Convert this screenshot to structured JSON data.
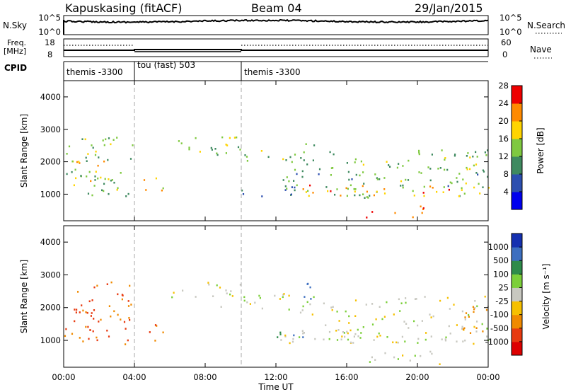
{
  "header": {
    "station": "Kapuskasing (fitACF)",
    "beam": "Beam 04",
    "date": "29/Jan/2015"
  },
  "noise_panel": {
    "left_label": "N.Sky",
    "right_label": "N.Search",
    "y_ticks": [
      "10^5",
      "10^0"
    ]
  },
  "freq_panel": {
    "left_label_1": "Freq.",
    "left_label_2": "[MHz]",
    "left_ticks": [
      "18",
      "8"
    ],
    "right_label": "Nave",
    "right_ticks": [
      "60",
      "0"
    ]
  },
  "cpid_panel": {
    "label": "CPID",
    "segments": [
      {
        "name": "themis -3300",
        "start_hour": 0,
        "end_hour": 4
      },
      {
        "name": "tou (fast) 503",
        "start_hour": 4,
        "end_hour": 10
      },
      {
        "name": "themis -3300",
        "start_hour": 10,
        "end_hour": 24
      }
    ]
  },
  "power_panel": {
    "ylabel": "Slant Range [km]",
    "y_ticks": [
      "1000",
      "2000",
      "3000",
      "4000"
    ],
    "colorbar_label": "Power [dB]",
    "colorbar_ticks": [
      "4",
      "8",
      "12",
      "16",
      "20",
      "24",
      "28"
    ],
    "colors": [
      "#0000ee",
      "#2d4fb0",
      "#3f8a60",
      "#7fc940",
      "#ffd400",
      "#ff8a00",
      "#ee0000"
    ]
  },
  "velocity_panel": {
    "ylabel": "Slant Range [km]",
    "y_ticks": [
      "1000",
      "2000",
      "3000",
      "4000"
    ],
    "colorbar_label": "Velocity [m s⁻¹]",
    "colorbar_ticks": [
      "1000",
      "500",
      "100",
      "25",
      "-25",
      "-100",
      "-500",
      "-1000"
    ],
    "colors": [
      "#1530b0",
      "#3d6fc0",
      "#2e8b4a",
      "#7ccf3a",
      "#c8c8c0",
      "#f6c000",
      "#f08a00",
      "#e83a10",
      "#dd0000"
    ]
  },
  "x_axis": {
    "label": "Time UT",
    "ticks": [
      "00:00",
      "04:00",
      "08:00",
      "12:00",
      "16:00",
      "20:00",
      "00:00"
    ]
  },
  "chart_data": {
    "type": "heatmap",
    "x_range_hours": [
      0,
      24
    ],
    "y_range_km": [
      180,
      4500
    ],
    "vertical_markers_hours": [
      4,
      10
    ],
    "power_scale_db": [
      0,
      30
    ],
    "velocity_scale": [
      -1000,
      1000
    ],
    "echo_regions": [
      {
        "t": [
          0.0,
          3.9
        ],
        "r": [
          900,
          2800
        ],
        "power": 14,
        "vel": -300
      },
      {
        "t": [
          0.0,
          2.8
        ],
        "r": [
          1300,
          2100
        ],
        "power": 19,
        "vel": -500
      },
      {
        "t": [
          4.5,
          5.6
        ],
        "r": [
          1000,
          1600
        ],
        "power": 21,
        "vel": -300
      },
      {
        "t": [
          6.0,
          10.0
        ],
        "r": [
          2300,
          2800
        ],
        "power": 15,
        "vel": 0
      },
      {
        "t": [
          8.0,
          12.5
        ],
        "r": [
          2000,
          2500
        ],
        "power": 15,
        "vel": 0
      },
      {
        "t": [
          10.0,
          13.5
        ],
        "r": [
          950,
          1200
        ],
        "power": 9,
        "vel": 0
      },
      {
        "t": [
          12.5,
          24.0
        ],
        "r": [
          900,
          2400
        ],
        "power": 13,
        "vel": 0
      },
      {
        "t": [
          13.2,
          24.0
        ],
        "r": [
          950,
          1300
        ],
        "power": 23,
        "vel": 0
      },
      {
        "t": [
          17.0,
          21.5
        ],
        "r": [
          300,
          700
        ],
        "power": 27,
        "vel": 0
      },
      {
        "t": [
          12.0,
          13.5
        ],
        "r": [
          1100,
          1500
        ],
        "power": 12,
        "vel": 300
      },
      {
        "t": [
          13.5,
          14.2
        ],
        "r": [
          1800,
          2800
        ],
        "power": 14,
        "vel": 400
      },
      {
        "t": [
          22.5,
          24.0
        ],
        "r": [
          1200,
          2200
        ],
        "power": 16,
        "vel": -200
      }
    ]
  }
}
